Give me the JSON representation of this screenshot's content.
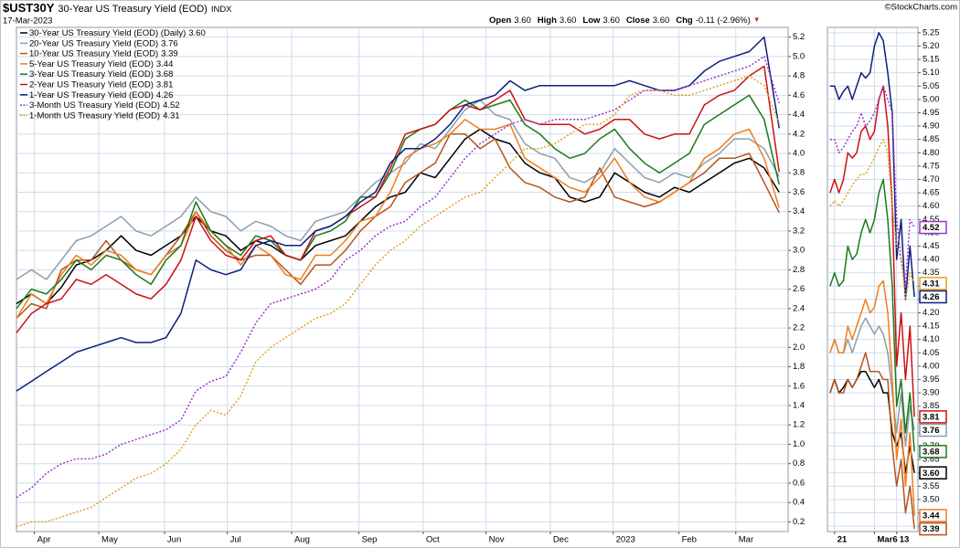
{
  "header": {
    "symbol": "$UST30Y",
    "description": "30-Year US Treasury Yield (EOD)",
    "exchange": "INDX",
    "date": "17-Mar-2023",
    "quote": [
      {
        "label": "Open",
        "value": "3.60"
      },
      {
        "label": "High",
        "value": "3.60"
      },
      {
        "label": "Low",
        "value": "3.60"
      },
      {
        "label": "Close",
        "value": "3.60"
      },
      {
        "label": "Chg",
        "value": "-0.11 (-2.96%)"
      }
    ],
    "brand": "©StockCharts.com"
  },
  "chart_data": [
    {
      "type": "line",
      "legend": "upper left",
      "grid": true,
      "x": [
        0,
        1,
        2,
        3,
        4,
        5,
        6,
        7,
        8,
        9,
        10,
        11,
        12,
        13,
        14,
        15,
        16,
        17,
        18,
        19,
        20,
        21,
        22,
        23,
        24,
        25,
        26,
        27,
        28,
        29,
        30,
        31,
        32,
        33,
        34,
        35,
        36,
        37,
        38,
        39,
        40,
        41,
        42,
        43,
        44,
        45,
        46,
        47,
        48,
        49,
        50,
        51
      ],
      "xlim": [
        0,
        51.6
      ],
      "xticks": [
        {
          "value": 1.2,
          "label": "Apr"
        },
        {
          "value": 5.5,
          "label": "May"
        },
        {
          "value": 9.9,
          "label": "Jun"
        },
        {
          "value": 14.1,
          "label": "Jul"
        },
        {
          "value": 18.4,
          "label": "Aug"
        },
        {
          "value": 22.9,
          "label": "Sep"
        },
        {
          "value": 27.2,
          "label": "Oct"
        },
        {
          "value": 31.4,
          "label": "Nov"
        },
        {
          "value": 35.7,
          "label": "Dec"
        },
        {
          "value": 39.9,
          "label": "2023"
        },
        {
          "value": 44.3,
          "label": "Feb"
        },
        {
          "value": 48.1,
          "label": "Mar"
        }
      ],
      "ylim": [
        0.1,
        5.3
      ],
      "yticks": [
        0.2,
        0.4,
        0.6,
        0.8,
        {
          "value": 1.0,
          "label": "1.0"
        },
        1.2,
        1.4,
        1.6,
        1.8,
        {
          "value": 2.0,
          "label": "2.0"
        },
        2.2,
        2.4,
        2.6,
        2.8,
        {
          "value": 3.0,
          "label": "3.0"
        },
        3.2,
        3.4,
        3.6,
        3.8,
        {
          "value": 4.0,
          "label": "4.0"
        },
        4.2,
        4.4,
        4.6,
        4.8,
        {
          "value": 5.0,
          "label": "5.0"
        },
        5.2
      ],
      "series": [
        {
          "name": "30-Year US Treasury Yield (EOD) (Daily)",
          "color": "#000000",
          "dash": false,
          "values": [
            2.45,
            2.55,
            2.45,
            2.62,
            2.85,
            2.9,
            3.0,
            3.15,
            3.0,
            2.95,
            3.05,
            3.15,
            3.35,
            3.2,
            3.15,
            3.0,
            3.1,
            3.05,
            2.95,
            2.9,
            3.05,
            3.1,
            3.15,
            3.3,
            3.45,
            3.55,
            3.6,
            3.8,
            3.75,
            3.95,
            4.15,
            4.25,
            4.15,
            4.1,
            3.9,
            3.8,
            3.75,
            3.55,
            3.5,
            3.55,
            3.8,
            3.7,
            3.6,
            3.55,
            3.65,
            3.6,
            3.7,
            3.8,
            3.9,
            3.95,
            3.85,
            3.6
          ]
        },
        {
          "name": "20-Year US Treasury Yield (EOD)",
          "color": "#8e9ea8",
          "dash": false,
          "values": [
            2.7,
            2.8,
            2.7,
            2.9,
            3.1,
            3.15,
            3.25,
            3.35,
            3.2,
            3.15,
            3.25,
            3.35,
            3.55,
            3.4,
            3.35,
            3.2,
            3.3,
            3.25,
            3.15,
            3.1,
            3.3,
            3.35,
            3.4,
            3.55,
            3.7,
            3.8,
            3.9,
            4.1,
            4.05,
            4.25,
            4.45,
            4.55,
            4.4,
            4.35,
            4.1,
            4.0,
            3.95,
            3.75,
            3.7,
            3.8,
            4.05,
            3.9,
            3.75,
            3.7,
            3.8,
            3.75,
            3.9,
            4.0,
            4.15,
            4.15,
            4.05,
            3.76
          ]
        },
        {
          "name": "10-Year US Treasury Yield (EOD)",
          "color": "#b4541e",
          "dash": false,
          "values": [
            2.3,
            2.45,
            2.4,
            2.8,
            2.9,
            2.9,
            3.1,
            2.9,
            2.8,
            2.75,
            2.95,
            3.15,
            3.4,
            3.15,
            3.0,
            2.9,
            2.95,
            2.95,
            2.8,
            2.65,
            2.85,
            2.85,
            3.0,
            3.2,
            3.35,
            3.45,
            3.7,
            3.8,
            3.9,
            4.2,
            4.2,
            4.05,
            4.15,
            3.85,
            3.7,
            3.65,
            3.55,
            3.5,
            3.55,
            3.85,
            3.55,
            3.5,
            3.45,
            3.5,
            3.6,
            3.7,
            3.8,
            3.95,
            3.95,
            4.0,
            3.7,
            3.39
          ]
        },
        {
          "name": "5-Year US Treasury Yield (EOD)",
          "color": "#f07d1c",
          "dash": false,
          "values": [
            2.3,
            2.55,
            2.45,
            2.75,
            2.95,
            2.85,
            3.0,
            2.95,
            2.8,
            2.75,
            2.95,
            3.05,
            3.4,
            3.2,
            3.05,
            2.85,
            3.05,
            2.95,
            2.75,
            2.7,
            2.95,
            2.95,
            3.1,
            3.3,
            3.35,
            3.6,
            3.95,
            4.05,
            4.1,
            4.2,
            4.35,
            4.25,
            4.25,
            4.3,
            3.95,
            3.85,
            3.75,
            3.65,
            3.6,
            3.75,
            3.95,
            3.7,
            3.55,
            3.5,
            3.6,
            3.7,
            3.95,
            4.05,
            4.2,
            4.25,
            3.95,
            3.44
          ]
        },
        {
          "name": "3-Year US Treasury Yield (EOD)",
          "color": "#1b7a1b",
          "dash": false,
          "values": [
            2.4,
            2.6,
            2.55,
            2.7,
            2.9,
            2.8,
            2.95,
            2.9,
            2.75,
            2.65,
            2.9,
            3.05,
            3.5,
            3.2,
            3.05,
            2.95,
            3.15,
            3.1,
            2.95,
            2.9,
            3.15,
            3.2,
            3.3,
            3.55,
            3.55,
            3.8,
            4.15,
            4.25,
            4.3,
            4.45,
            4.55,
            4.45,
            4.5,
            4.55,
            4.3,
            4.2,
            4.05,
            3.95,
            4.0,
            4.15,
            4.25,
            4.05,
            3.9,
            3.8,
            3.9,
            4.0,
            4.3,
            4.4,
            4.5,
            4.6,
            4.35,
            3.68
          ]
        },
        {
          "name": "2-Year US Treasury Yield (EOD)",
          "color": "#cc1111",
          "dash": false,
          "values": [
            2.15,
            2.35,
            2.45,
            2.5,
            2.7,
            2.65,
            2.75,
            2.65,
            2.55,
            2.5,
            2.65,
            2.9,
            3.35,
            3.1,
            2.95,
            2.9,
            3.1,
            3.15,
            2.95,
            2.9,
            3.2,
            3.25,
            3.35,
            3.45,
            3.55,
            3.85,
            4.2,
            4.25,
            4.3,
            4.45,
            4.5,
            4.45,
            4.55,
            4.65,
            4.35,
            4.3,
            4.3,
            4.3,
            4.2,
            4.25,
            4.35,
            4.35,
            4.2,
            4.15,
            4.2,
            4.2,
            4.5,
            4.6,
            4.65,
            4.8,
            4.9,
            3.81
          ]
        },
        {
          "name": "1-Year US Treasury Yield (EOD)",
          "color": "#0c1f7c",
          "dash": false,
          "values": [
            1.55,
            1.65,
            1.75,
            1.85,
            1.95,
            2.0,
            2.05,
            2.1,
            2.05,
            2.05,
            2.1,
            2.35,
            2.9,
            2.8,
            2.75,
            2.8,
            3.05,
            3.1,
            3.05,
            3.05,
            3.2,
            3.25,
            3.35,
            3.5,
            3.6,
            3.9,
            4.05,
            4.05,
            4.15,
            4.3,
            4.5,
            4.55,
            4.6,
            4.75,
            4.65,
            4.7,
            4.7,
            4.7,
            4.7,
            4.7,
            4.7,
            4.75,
            4.7,
            4.65,
            4.65,
            4.7,
            4.85,
            4.95,
            5.0,
            5.05,
            5.2,
            4.26
          ]
        },
        {
          "name": "3-Month US Treasury Yield (EOD)",
          "color": "#9a35cc",
          "dash": true,
          "values": [
            0.45,
            0.55,
            0.7,
            0.8,
            0.85,
            0.85,
            0.9,
            1.0,
            1.05,
            1.1,
            1.15,
            1.25,
            1.55,
            1.65,
            1.7,
            1.95,
            2.25,
            2.45,
            2.5,
            2.55,
            2.6,
            2.7,
            2.9,
            3.0,
            3.15,
            3.25,
            3.3,
            3.45,
            3.55,
            3.75,
            3.95,
            4.1,
            4.2,
            4.3,
            4.35,
            4.3,
            4.35,
            4.35,
            4.35,
            4.4,
            4.45,
            4.55,
            4.65,
            4.65,
            4.65,
            4.7,
            4.75,
            4.8,
            4.85,
            4.9,
            5.0,
            4.52
          ]
        },
        {
          "name": "1-Month US Treasury Yield (EOD)",
          "color": "#e2a020",
          "dash": true,
          "values": [
            0.15,
            0.2,
            0.2,
            0.25,
            0.3,
            0.35,
            0.45,
            0.55,
            0.65,
            0.7,
            0.8,
            0.95,
            1.2,
            1.35,
            1.3,
            1.5,
            1.85,
            2.0,
            2.1,
            2.2,
            2.3,
            2.35,
            2.45,
            2.65,
            2.85,
            3.0,
            3.1,
            3.25,
            3.35,
            3.45,
            3.55,
            3.6,
            3.75,
            3.9,
            4.05,
            4.05,
            4.1,
            4.2,
            4.3,
            4.3,
            4.4,
            4.6,
            4.65,
            4.65,
            4.6,
            4.6,
            4.65,
            4.7,
            4.75,
            4.8,
            4.7,
            4.31
          ]
        }
      ]
    },
    {
      "type": "line",
      "grid": true,
      "last_value_boxes": true,
      "x": [
        0,
        1,
        2,
        3,
        4,
        5,
        6,
        7,
        8,
        9,
        10,
        11,
        12,
        13,
        14,
        15,
        16,
        17,
        18,
        19
      ],
      "xlim": [
        -0.6,
        19.8
      ],
      "xticks": [
        {
          "value": 1,
          "label": "21"
        },
        {
          "value": 10,
          "label": "Mar6"
        },
        {
          "value": 15,
          "label": "13"
        }
      ],
      "ylim": [
        3.38,
        5.27
      ],
      "yticks": [
        {
          "value": 3.4,
          "label": "3.40"
        },
        3.45,
        {
          "value": 3.5,
          "label": "3.50"
        },
        3.55,
        {
          "value": 3.6,
          "label": "3.60"
        },
        3.65,
        {
          "value": 3.7,
          "label": "3.70"
        },
        3.75,
        {
          "value": 3.8,
          "label": "3.80"
        },
        3.85,
        {
          "value": 3.9,
          "label": "3.90"
        },
        3.95,
        {
          "value": 4.0,
          "label": "4.00"
        },
        4.05,
        {
          "value": 4.1,
          "label": "4.10"
        },
        4.15,
        {
          "value": 4.2,
          "label": "4.20"
        },
        4.25,
        {
          "value": 4.3,
          "label": "4.30"
        },
        4.35,
        {
          "value": 4.4,
          "label": "4.40"
        },
        4.45,
        {
          "value": 4.5,
          "label": "4.50"
        },
        4.55,
        {
          "value": 4.6,
          "label": "4.60"
        },
        4.65,
        {
          "value": 4.7,
          "label": "4.70"
        },
        4.75,
        {
          "value": 4.8,
          "label": "4.80"
        },
        4.85,
        {
          "value": 4.9,
          "label": "4.90"
        },
        4.95,
        {
          "value": 5.0,
          "label": "5.00"
        },
        5.05,
        {
          "value": 5.1,
          "label": "5.10"
        },
        5.15,
        {
          "value": 5.2,
          "label": "5.20"
        },
        5.25
      ],
      "series": [
        {
          "color": "#000000",
          "dash": false,
          "values": [
            3.9,
            3.95,
            3.9,
            3.92,
            3.95,
            3.92,
            3.95,
            3.98,
            3.98,
            3.95,
            3.92,
            3.95,
            3.9,
            3.9,
            3.75,
            3.7,
            3.75,
            3.6,
            3.7,
            3.6
          ],
          "value_labels": [
            null,
            null,
            null,
            null,
            null,
            null,
            null,
            null,
            null,
            null,
            null,
            null,
            null,
            null,
            null,
            null,
            null,
            null,
            null,
            "3.60"
          ]
        },
        {
          "color": "#8e9ea8",
          "dash": false,
          "values": [
            4.05,
            4.1,
            4.05,
            4.05,
            4.1,
            4.05,
            4.1,
            4.15,
            4.18,
            4.15,
            4.12,
            4.15,
            4.12,
            4.05,
            3.9,
            3.75,
            3.9,
            3.7,
            3.85,
            3.76
          ]
        },
        {
          "color": "#b4541e",
          "dash": false,
          "values": [
            3.9,
            3.95,
            3.9,
            3.9,
            3.95,
            3.92,
            3.95,
            4.0,
            4.05,
            3.98,
            3.98,
            3.98,
            3.95,
            3.95,
            3.7,
            3.55,
            3.65,
            3.45,
            3.55,
            3.39
          ]
        },
        {
          "color": "#f07d1c",
          "dash": false,
          "values": [
            4.05,
            4.1,
            4.05,
            4.05,
            4.15,
            4.1,
            4.15,
            4.2,
            4.25,
            4.2,
            4.22,
            4.3,
            4.32,
            4.2,
            3.95,
            3.65,
            3.8,
            3.55,
            3.75,
            3.44
          ]
        },
        {
          "color": "#1b7a1b",
          "dash": false,
          "values": [
            4.3,
            4.35,
            4.3,
            4.32,
            4.45,
            4.4,
            4.42,
            4.5,
            4.55,
            4.5,
            4.55,
            4.65,
            4.7,
            4.55,
            4.3,
            3.85,
            3.95,
            3.75,
            3.9,
            3.68
          ]
        },
        {
          "color": "#cc1111",
          "dash": false,
          "values": [
            4.65,
            4.7,
            4.65,
            4.7,
            4.8,
            4.78,
            4.8,
            4.88,
            4.9,
            4.85,
            4.88,
            5.0,
            5.05,
            4.9,
            4.6,
            4.0,
            4.2,
            3.95,
            4.15,
            3.81
          ]
        },
        {
          "color": "#0c1f7c",
          "dash": false,
          "values": [
            5.05,
            5.05,
            5.0,
            5.03,
            5.05,
            5.0,
            5.05,
            5.1,
            5.08,
            5.1,
            5.2,
            5.25,
            5.22,
            5.1,
            4.95,
            4.4,
            4.55,
            4.25,
            4.45,
            4.26
          ]
        },
        {
          "color": "#9a35cc",
          "dash": true,
          "values": [
            4.85,
            4.85,
            4.8,
            4.82,
            4.85,
            4.88,
            4.9,
            4.95,
            4.9,
            4.92,
            4.95,
            5.0,
            5.05,
            5.0,
            4.95,
            4.55,
            4.4,
            4.3,
            4.55,
            4.52
          ]
        },
        {
          "color": "#e2a020",
          "dash": true,
          "values": [
            4.6,
            4.62,
            4.6,
            4.62,
            4.65,
            4.68,
            4.7,
            4.72,
            4.72,
            4.75,
            4.78,
            4.82,
            4.85,
            4.8,
            4.6,
            4.45,
            4.4,
            4.25,
            4.35,
            4.31
          ]
        }
      ]
    }
  ]
}
